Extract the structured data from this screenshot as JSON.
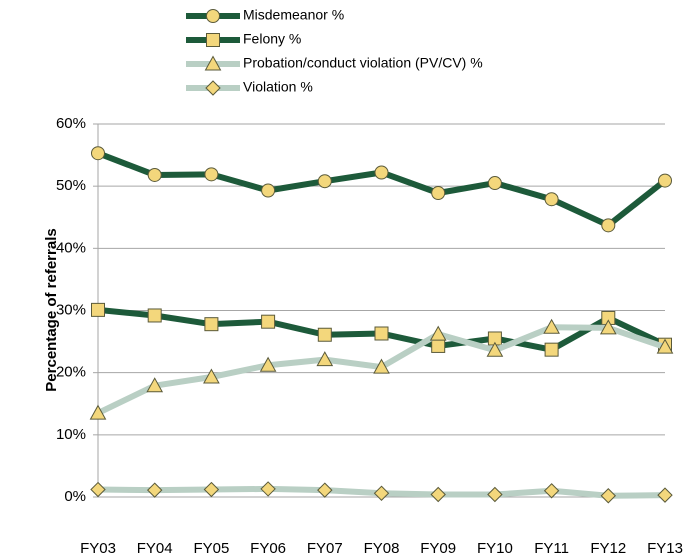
{
  "chart_data": {
    "type": "line",
    "ylabel": "Percentage of referrals",
    "categories": [
      "FY03",
      "FY04",
      "FY05",
      "FY06",
      "FY07",
      "FY08",
      "FY09",
      "FY10",
      "FY11",
      "FY12",
      "FY13"
    ],
    "series": [
      {
        "name": "Misdemeanor %",
        "color": "#1d5a3a",
        "marker": "circle",
        "values": [
          55.3,
          51.8,
          51.9,
          49.3,
          50.8,
          52.2,
          48.9,
          50.5,
          47.9,
          43.7,
          50.9
        ]
      },
      {
        "name": "Felony %",
        "color": "#1d5a3a",
        "marker": "square",
        "values": [
          30.1,
          29.2,
          27.8,
          28.2,
          26.1,
          26.3,
          24.3,
          25.5,
          23.7,
          28.8,
          24.5
        ]
      },
      {
        "name": "Probation/conduct violation (PV/CV) %",
        "color": "#b9cfc4",
        "marker": "triangle",
        "values": [
          13.5,
          17.9,
          19.3,
          21.2,
          22.1,
          20.9,
          26.2,
          23.6,
          27.3,
          27.2,
          24.1
        ]
      },
      {
        "name": "Violation %",
        "color": "#b9cfc4",
        "marker": "diamond",
        "values": [
          1.2,
          1.1,
          1.2,
          1.3,
          1.1,
          0.6,
          0.4,
          0.4,
          1.0,
          0.2,
          0.3
        ]
      }
    ],
    "marker_fill": "#f3d77c",
    "ylim": [
      0,
      60
    ],
    "yticks": [
      {
        "value": 0,
        "label": "0%"
      },
      {
        "value": 10,
        "label": "10%"
      },
      {
        "value": 20,
        "label": "20%"
      },
      {
        "value": 30,
        "label": "30%"
      },
      {
        "value": 40,
        "label": "40%"
      },
      {
        "value": 50,
        "label": "50%"
      },
      {
        "value": 60,
        "label": "60%"
      }
    ],
    "grid": true
  }
}
